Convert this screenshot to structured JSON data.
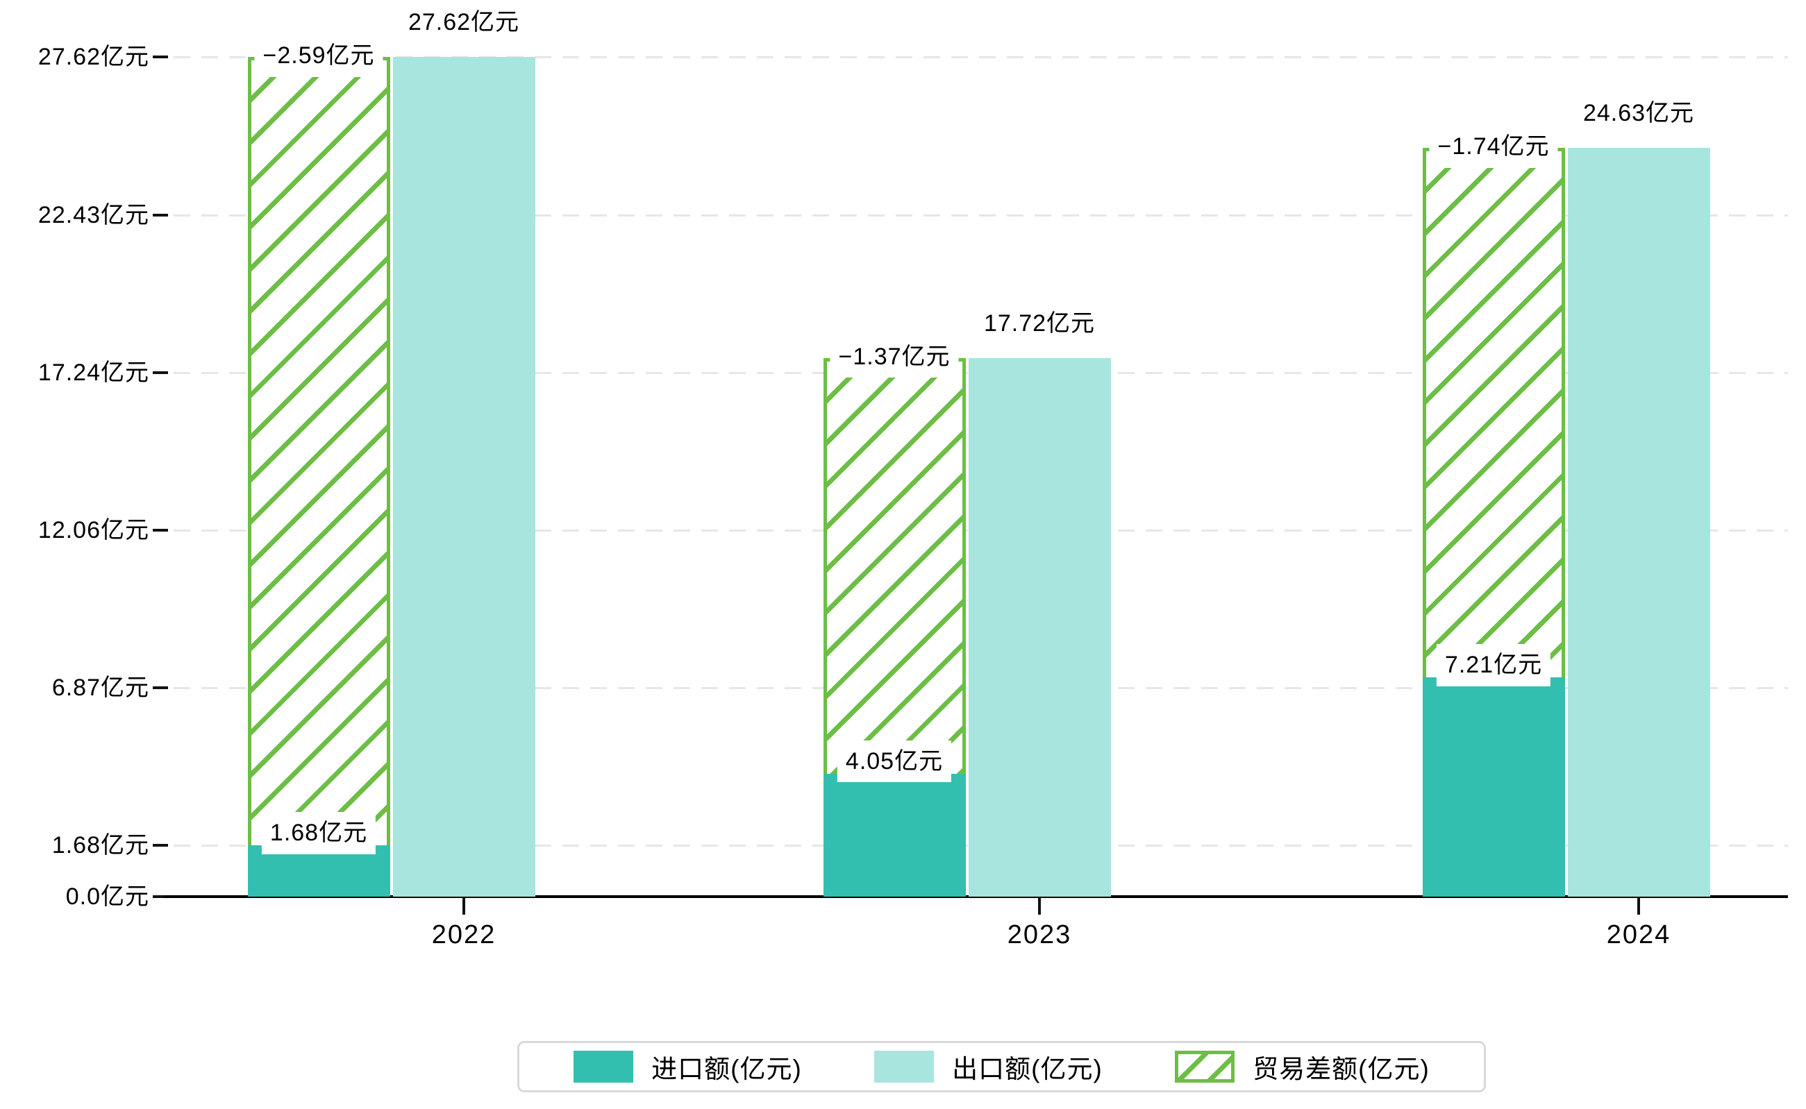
{
  "chart_data": {
    "type": "bar",
    "title": "",
    "categories": [
      "2022",
      "2023",
      "2024"
    ],
    "series": [
      {
        "name": "进口额(亿元)",
        "role": "imports",
        "values": [
          1.68,
          4.05,
          7.21
        ],
        "labels": [
          "1.68亿元",
          "4.05亿元",
          "7.21亿元"
        ],
        "color": "#32bfb0",
        "style": "solid"
      },
      {
        "name": "出口额(亿元)",
        "role": "exports",
        "values": [
          27.62,
          17.72,
          24.63
        ],
        "labels": [
          "27.62亿元",
          "17.72亿元",
          "24.63亿元"
        ],
        "color": "#a8e5df",
        "style": "solid"
      },
      {
        "name": "贸易差额(亿元)",
        "role": "trade-balance",
        "values": [
          -2.59,
          -1.37,
          -1.74
        ],
        "labels": [
          "−2.59亿元",
          "−1.37亿元",
          "−1.74亿元"
        ],
        "color": "#6cbe45",
        "style": "hatched",
        "note": "drawn as hatched segment stacked from import top up to export level on the left column"
      }
    ],
    "y_axis": {
      "tick_values": [
        0,
        1.68,
        6.87,
        12.06,
        17.24,
        22.43,
        27.62
      ],
      "tick_labels": [
        "0.0亿元",
        "1.68亿元",
        "6.87亿元",
        "12.06亿元",
        "17.24亿元",
        "22.43亿元",
        "27.62亿元"
      ],
      "unit": "亿元"
    },
    "ylim": [
      0,
      27.62
    ],
    "grid": "horizontal dashed",
    "legend_position": "bottom"
  },
  "colors": {
    "import_teal": "#32bfb0",
    "export_light_teal": "#a8e5df",
    "balance_green": "#6cbe45",
    "gridline": "#e6e6e6",
    "axis": "#000000",
    "legend_border": "#d9d9d9",
    "background": "#ffffff",
    "text": "#000000"
  },
  "legend": {
    "items": [
      {
        "label": "进口额(亿元)",
        "swatch": "solid-teal"
      },
      {
        "label": "出口额(亿元)",
        "swatch": "solid-light-teal"
      },
      {
        "label": "贸易差额(亿元)",
        "swatch": "green-hatched"
      }
    ]
  }
}
